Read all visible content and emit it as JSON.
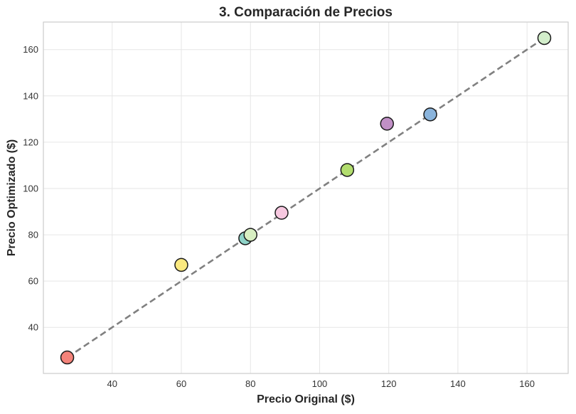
{
  "chart_data": {
    "type": "scatter",
    "title": "3. Comparación de Precios",
    "xlabel": "Precio Original ($)",
    "ylabel": "Precio Optimizado ($)",
    "xlim": [
      20.1,
      171.9
    ],
    "ylim": [
      20.1,
      171.9
    ],
    "xticks": [
      40,
      60,
      80,
      100,
      120,
      140,
      160
    ],
    "yticks": [
      40,
      60,
      80,
      100,
      120,
      140,
      160
    ],
    "grid": true,
    "reference_line": {
      "style": "dashed",
      "color": "#808080",
      "from": [
        27,
        27
      ],
      "to": [
        165,
        165
      ]
    },
    "points": [
      {
        "x": 27,
        "y": 27,
        "color": "#f4837a"
      },
      {
        "x": 60,
        "y": 67,
        "color": "#fbe97f"
      },
      {
        "x": 78.5,
        "y": 78.5,
        "color": "#8fd3c8"
      },
      {
        "x": 80,
        "y": 80,
        "color": "#d8efc2"
      },
      {
        "x": 89,
        "y": 89.5,
        "color": "#f7c8e0"
      },
      {
        "x": 108,
        "y": 108,
        "color": "#b2dd6e"
      },
      {
        "x": 119.5,
        "y": 128,
        "color": "#c190c6"
      },
      {
        "x": 132,
        "y": 132,
        "color": "#8ab4dc"
      },
      {
        "x": 165,
        "y": 165,
        "color": "#d3eecb"
      }
    ]
  }
}
